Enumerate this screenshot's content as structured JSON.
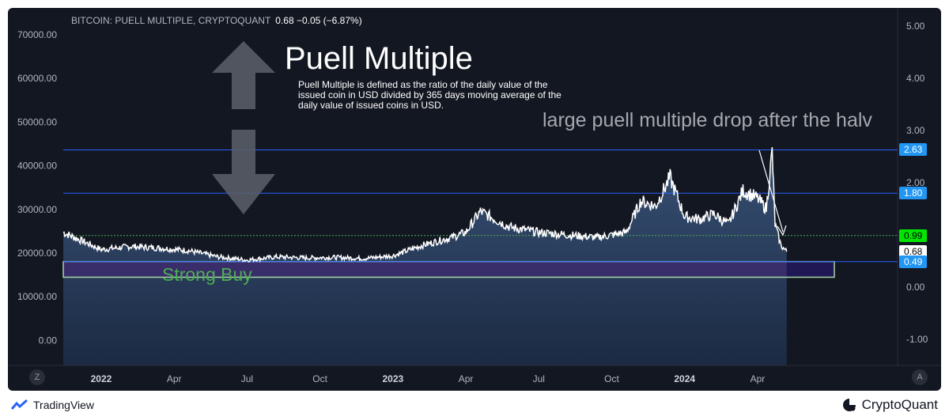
{
  "header": {
    "symbol_label": "BITCOIN: PUELL MULTIPLE, CRYPTOQUANT",
    "value_label": "0.68  −0.05 (−6.87%)"
  },
  "annotations": {
    "title": "Puell Multiple",
    "definition": "Puell Multiple is defined as the ratio of the daily value of the issued coin in USD divided by 365 days moving average of the daily value of issued coins in USD.",
    "drop_note": "large puell multiple drop after the halv",
    "strong_buy": "Strong Buy"
  },
  "colors": {
    "background": "#131722",
    "line": "#ffffff",
    "level_line": "#2962ff",
    "level_pill": "#2196f3",
    "green_level": "#4caf50",
    "strong_buy_zone": "#311b92",
    "area_fill": "#2a3d5c",
    "arrow": "#5d606b"
  },
  "chart_data": {
    "type": "line",
    "series": [
      {
        "values_time": [
          2021.87,
          2022.0,
          2022.1,
          2022.2,
          2022.3,
          2022.4,
          2022.5,
          2022.6,
          2022.7,
          2022.8,
          2022.9,
          2023.0,
          2023.1,
          2023.2,
          2023.25,
          2023.3,
          2023.4,
          2023.5,
          2023.6,
          2023.7,
          2023.8,
          2023.85,
          2023.9,
          2023.95,
          2024.0,
          2024.05,
          2024.1,
          2024.15,
          2024.2,
          2024.25,
          2024.28,
          2024.3,
          2024.31,
          2024.33,
          2024.35
        ],
        "values": [
          1.05,
          0.72,
          0.78,
          0.75,
          0.7,
          0.58,
          0.52,
          0.58,
          0.56,
          0.57,
          0.55,
          0.6,
          0.8,
          0.95,
          1.05,
          1.45,
          1.15,
          1.05,
          1.0,
          0.95,
          1.05,
          1.65,
          1.55,
          2.1,
          1.35,
          1.3,
          1.4,
          1.2,
          1.85,
          1.7,
          1.5,
          2.6,
          1.2,
          0.8,
          0.68
        ]
      }
    ],
    "x_range": [
      2021.87,
      2024.73
    ],
    "x_ticks": [
      "2022",
      "Apr",
      "Jul",
      "Oct",
      "2023",
      "Apr",
      "Jul",
      "Oct",
      "2024",
      "Apr"
    ],
    "x_tick_values": [
      2022.0,
      2022.25,
      2022.5,
      2022.75,
      2023.0,
      2023.25,
      2023.5,
      2023.75,
      2024.0,
      2024.25
    ],
    "y_right_ticks": [
      "5.00",
      "4.00",
      "3.00",
      "2.00",
      "1.00",
      "0.00",
      "-1.00"
    ],
    "y_right_values": [
      5,
      4,
      3,
      2,
      1,
      0,
      -1
    ],
    "y_left_ticks": [
      "70000.00",
      "60000.00",
      "50000.00",
      "40000.00",
      "30000.00",
      "20000.00",
      "10000.00",
      "0.00"
    ],
    "y_right_range": [
      -1.5,
      5.35
    ],
    "levels": [
      {
        "label": "2.63",
        "value": 2.63,
        "kind": "blue"
      },
      {
        "label": "1.80",
        "value": 1.8,
        "kind": "blue"
      },
      {
        "label": "0.99",
        "value": 0.99,
        "kind": "green"
      },
      {
        "label": "0.68",
        "value": 0.68,
        "kind": "current"
      },
      {
        "label": "0.49",
        "value": 0.49,
        "kind": "blue"
      }
    ],
    "strong_buy_zone": [
      0.19,
      0.49
    ],
    "grid": false
  },
  "footer": {
    "left_brand": "TradingView",
    "right_brand": "CryptoQuant",
    "z_btn": "Z",
    "a_btn": "A"
  }
}
